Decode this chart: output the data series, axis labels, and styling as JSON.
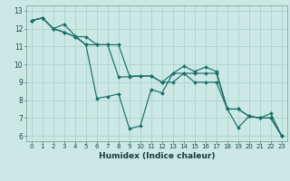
{
  "title": "",
  "xlabel": "Humidex (Indice chaleur)",
  "bg_color": "#cce8e4",
  "grid_color": "#aad4cc",
  "line_color": "#1a6e6a",
  "xlim": [
    -0.5,
    23.5
  ],
  "ylim": [
    5.7,
    13.3
  ],
  "yticks": [
    6,
    7,
    8,
    9,
    10,
    11,
    12,
    13
  ],
  "xticks": [
    0,
    1,
    2,
    3,
    4,
    5,
    6,
    7,
    8,
    9,
    10,
    11,
    12,
    13,
    14,
    15,
    16,
    17,
    18,
    19,
    20,
    21,
    22,
    23
  ],
  "series": [
    [
      12.45,
      12.6,
      12.0,
      12.25,
      11.6,
      11.1,
      8.1,
      8.2,
      8.35,
      6.4,
      6.55,
      8.6,
      8.4,
      9.5,
      9.9,
      9.6,
      9.85,
      9.6,
      7.5,
      6.45,
      7.1,
      7.0,
      7.25,
      6.0
    ],
    [
      12.45,
      12.6,
      12.0,
      11.8,
      11.55,
      11.55,
      11.1,
      11.1,
      9.3,
      9.3,
      9.35,
      9.35,
      9.0,
      9.0,
      9.5,
      9.0,
      9.0,
      9.0,
      7.5,
      7.5,
      7.1,
      7.0,
      7.0,
      6.0
    ],
    [
      12.45,
      12.6,
      12.0,
      11.8,
      11.55,
      11.1,
      11.1,
      11.1,
      11.1,
      9.35,
      9.35,
      9.35,
      9.0,
      9.5,
      9.5,
      9.5,
      9.5,
      9.5,
      7.5,
      7.5,
      7.1,
      7.0,
      7.0,
      6.0
    ]
  ]
}
